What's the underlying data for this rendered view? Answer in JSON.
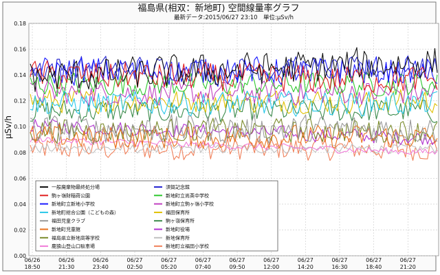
{
  "chart_data": {
    "type": "line",
    "title": "福島県(相双：新地町) 空間線量率グラフ",
    "subtitle": "最新データ:2015/06/27 23:10　単位:μSv/h",
    "ylabel": "μSv/h",
    "xlabel": "",
    "ylim": [
      0.0,
      0.18
    ],
    "y_ticks": [
      "0.00",
      "0.02",
      "0.04",
      "0.06",
      "0.08",
      "0.10",
      "0.12",
      "0.14",
      "0.16",
      "0.18"
    ],
    "x_ticks": [
      {
        "d": "06/26",
        "t": "18:50"
      },
      {
        "d": "06/26",
        "t": "21:30"
      },
      {
        "d": "06/26",
        "t": "23:40"
      },
      {
        "d": "06/27",
        "t": "02:50"
      },
      {
        "d": "06/27",
        "t": "05:20"
      },
      {
        "d": "06/27",
        "t": "07:40"
      },
      {
        "d": "06/27",
        "t": "09:50"
      },
      {
        "d": "06/27",
        "t": "12:00"
      },
      {
        "d": "06/27",
        "t": "14:20"
      },
      {
        "d": "06/27",
        "t": "16:30"
      },
      {
        "d": "06/27",
        "t": "18:40"
      },
      {
        "d": "06/27",
        "t": "21:20"
      }
    ],
    "grid": true,
    "legend_position": "bottom-left",
    "series": [
      {
        "name": "一般廃棄物最終処分場",
        "color": "#111111",
        "base": 0.138,
        "amp": 0.014,
        "trend": 0.012
      },
      {
        "name": "駒ヶ嶺財稲荷公園",
        "color": "#e02020",
        "base": 0.14,
        "amp": 0.012,
        "trend": -0.004
      },
      {
        "name": "新地町立新地小学校",
        "color": "#1a1aff",
        "base": 0.143,
        "amp": 0.012,
        "trend": 0.0
      },
      {
        "name": "新地町総合公園（こどもの森）",
        "color": "#27c7e8",
        "base": 0.118,
        "amp": 0.01,
        "trend": 0.0
      },
      {
        "name": "福田児童クラブ",
        "color": "#9a9a9a",
        "base": 0.098,
        "amp": 0.012,
        "trend": 0.0
      },
      {
        "name": "新地町児童館",
        "color": "#e8721c",
        "base": 0.092,
        "amp": 0.01,
        "trend": 0.0
      },
      {
        "name": "福島県立新地高等学校",
        "color": "#7a8a2a",
        "base": 0.097,
        "amp": 0.01,
        "trend": 0.0
      },
      {
        "name": "鹿狼山登山口駐車場",
        "color": "#f07ad8",
        "base": 0.09,
        "amp": 0.003,
        "trend": -0.01
      },
      {
        "name": "須賀記念館",
        "color": "#2424d0",
        "base": 0.146,
        "amp": 0.01,
        "trend": -0.002
      },
      {
        "name": "新地町立尚英中学校",
        "color": "#2ec82e",
        "base": 0.133,
        "amp": 0.01,
        "trend": 0.0
      },
      {
        "name": "新地町立駒ヶ嶺小学校",
        "color": "#c040c0",
        "base": 0.126,
        "amp": 0.01,
        "trend": 0.0
      },
      {
        "name": "福田保育所",
        "color": "#e0c000",
        "base": 0.12,
        "amp": 0.01,
        "trend": 0.0
      },
      {
        "name": "駒ヶ嶺保育所",
        "color": "#3a8a4a",
        "base": 0.112,
        "amp": 0.01,
        "trend": 0.0
      },
      {
        "name": "新地町役場",
        "color": "#b030d0",
        "base": 0.101,
        "amp": 0.006,
        "trend": -0.01
      },
      {
        "name": "新地保育所",
        "color": "#c0c0c0",
        "base": 0.083,
        "amp": 0.004,
        "trend": 0.0
      },
      {
        "name": "新地町立福田小学校",
        "color": "#f0805a",
        "base": 0.083,
        "amp": 0.01,
        "trend": 0.0
      }
    ]
  }
}
